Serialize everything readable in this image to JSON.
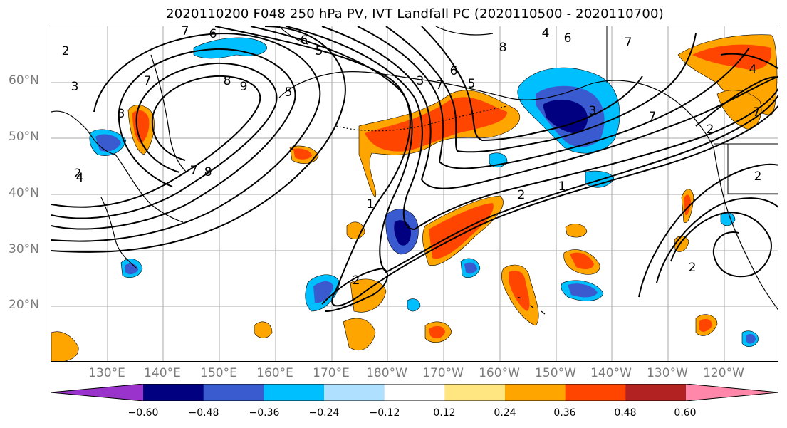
{
  "title": "2020110200 F048 250 hPa PV, IVT Landfall PC (2020110500 - 2020110700)",
  "lat_labels": [
    "60°N",
    "50°N",
    "40°N",
    "30°N",
    "20°N"
  ],
  "lon_labels": [
    "130°E",
    "140°E",
    "150°E",
    "160°E",
    "170°E",
    "180°W",
    "170°W",
    "160°W",
    "150°W",
    "140°W",
    "130°W",
    "120°W"
  ],
  "contour_labels": [
    "2",
    "7",
    "6",
    "3",
    "4",
    "7",
    "8",
    "9",
    "5",
    "2",
    "3",
    "7",
    "8",
    "6",
    "5",
    "8",
    "3",
    "7",
    "6",
    "5",
    "4",
    "7",
    "6",
    "3",
    "2",
    "1",
    "7",
    "2",
    "2",
    "4",
    "7",
    "2",
    "1",
    "2"
  ],
  "colorbar": {
    "ticks": [
      "−0.60",
      "−0.48",
      "−0.36",
      "−0.24",
      "−0.12",
      "0.12",
      "0.24",
      "0.36",
      "0.48",
      "0.60"
    ],
    "colors": [
      "#9933cc",
      "#000080",
      "#3a5bd0",
      "#00bfff",
      "#b0e0ff",
      "#ffffff",
      "#ffe680",
      "#ffa500",
      "#ff4500",
      "#b22222",
      "#ff88aa"
    ]
  },
  "colors": {
    "neg_extreme": "#9933cc",
    "neg_strong": "#000080",
    "neg_mid": "#3a5bd0",
    "neg_light": "#00bfff",
    "neg_pale": "#b0e0ff",
    "pos_pale": "#ffe680",
    "pos_light": "#ffa500",
    "pos_mid": "#ff4500",
    "pos_strong": "#b22222",
    "grid": "#a8a8a8"
  }
}
